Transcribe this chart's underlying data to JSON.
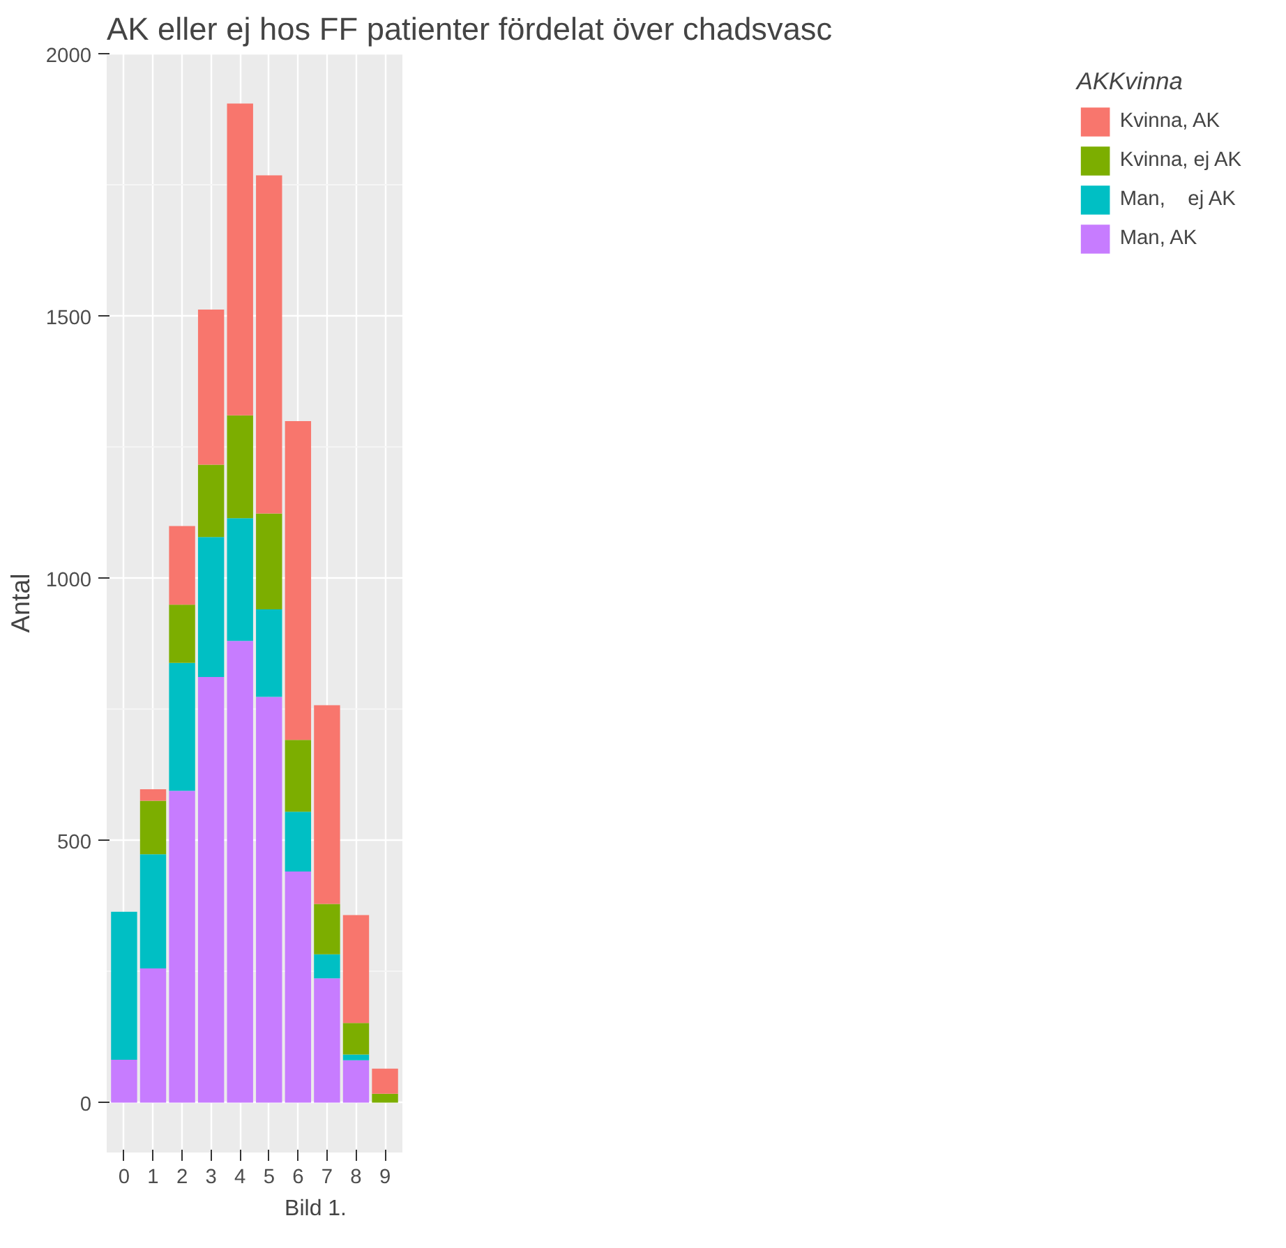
{
  "chart_data": {
    "type": "bar",
    "stacked": true,
    "title": "AK eller ej hos FF patienter fördelat över chadsvasc",
    "ylabel": "Antal",
    "legend_title": "AKKvinna",
    "legend": "right",
    "grid": true,
    "categories": [
      "0",
      "1",
      "2",
      "3",
      "4",
      "5",
      "6",
      "7",
      "8",
      "9"
    ],
    "series": [
      {
        "name": "Man, AK",
        "color": "#c77cff",
        "values": [
          82,
          256,
          595,
          812,
          881,
          774,
          441,
          237,
          81,
          0
        ]
      },
      {
        "name": "Man,    ej AK",
        "color": "#00bfc4",
        "values": [
          282,
          218,
          244,
          267,
          234,
          167,
          114,
          46,
          11,
          0
        ]
      },
      {
        "name": "Kvinna, ej AK",
        "color": "#7cae00",
        "values": [
          0,
          102,
          111,
          138,
          196,
          183,
          137,
          96,
          60,
          17
        ]
      },
      {
        "name": "Kvinna, AK",
        "color": "#f8766d",
        "values": [
          0,
          22,
          150,
          296,
          595,
          645,
          608,
          379,
          206,
          48
        ]
      }
    ],
    "ylim": [
      -95,
      2001
    ],
    "yticks": [
      0,
      500,
      1000,
      1500,
      2000
    ],
    "annotations": [
      "Bild 1."
    ]
  }
}
